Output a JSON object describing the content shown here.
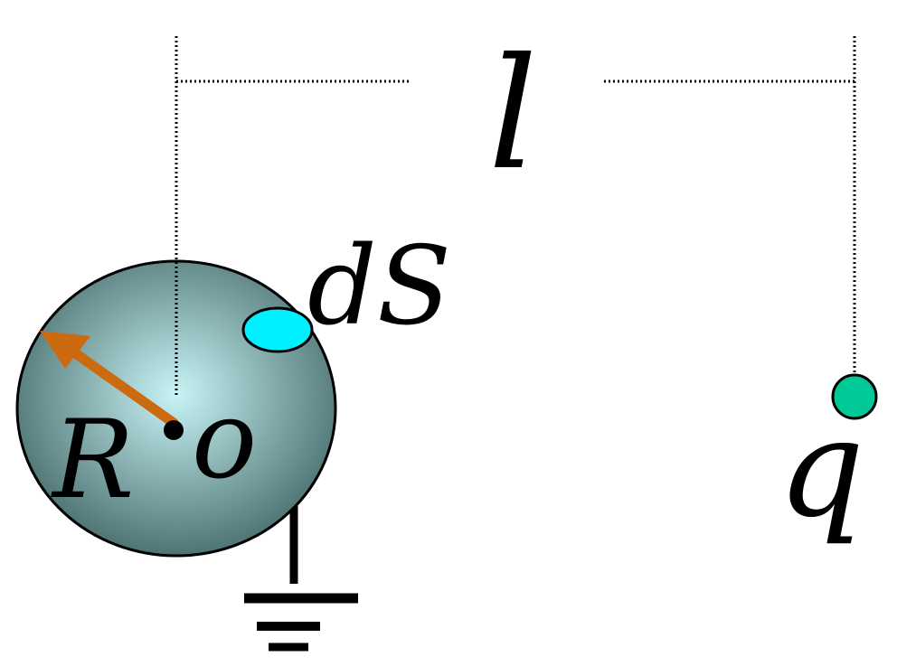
{
  "labels": {
    "distance": "l",
    "surface_element": "dS",
    "radius": "R",
    "center": "o",
    "charge": "q"
  },
  "colors": {
    "sphere_center": "#c8f4f6",
    "sphere_edge": "#4f7373",
    "surface_patch": "#00f0ff",
    "radius_arrow": "#cc6a10",
    "charge": "#00c896",
    "line": "#000000"
  }
}
